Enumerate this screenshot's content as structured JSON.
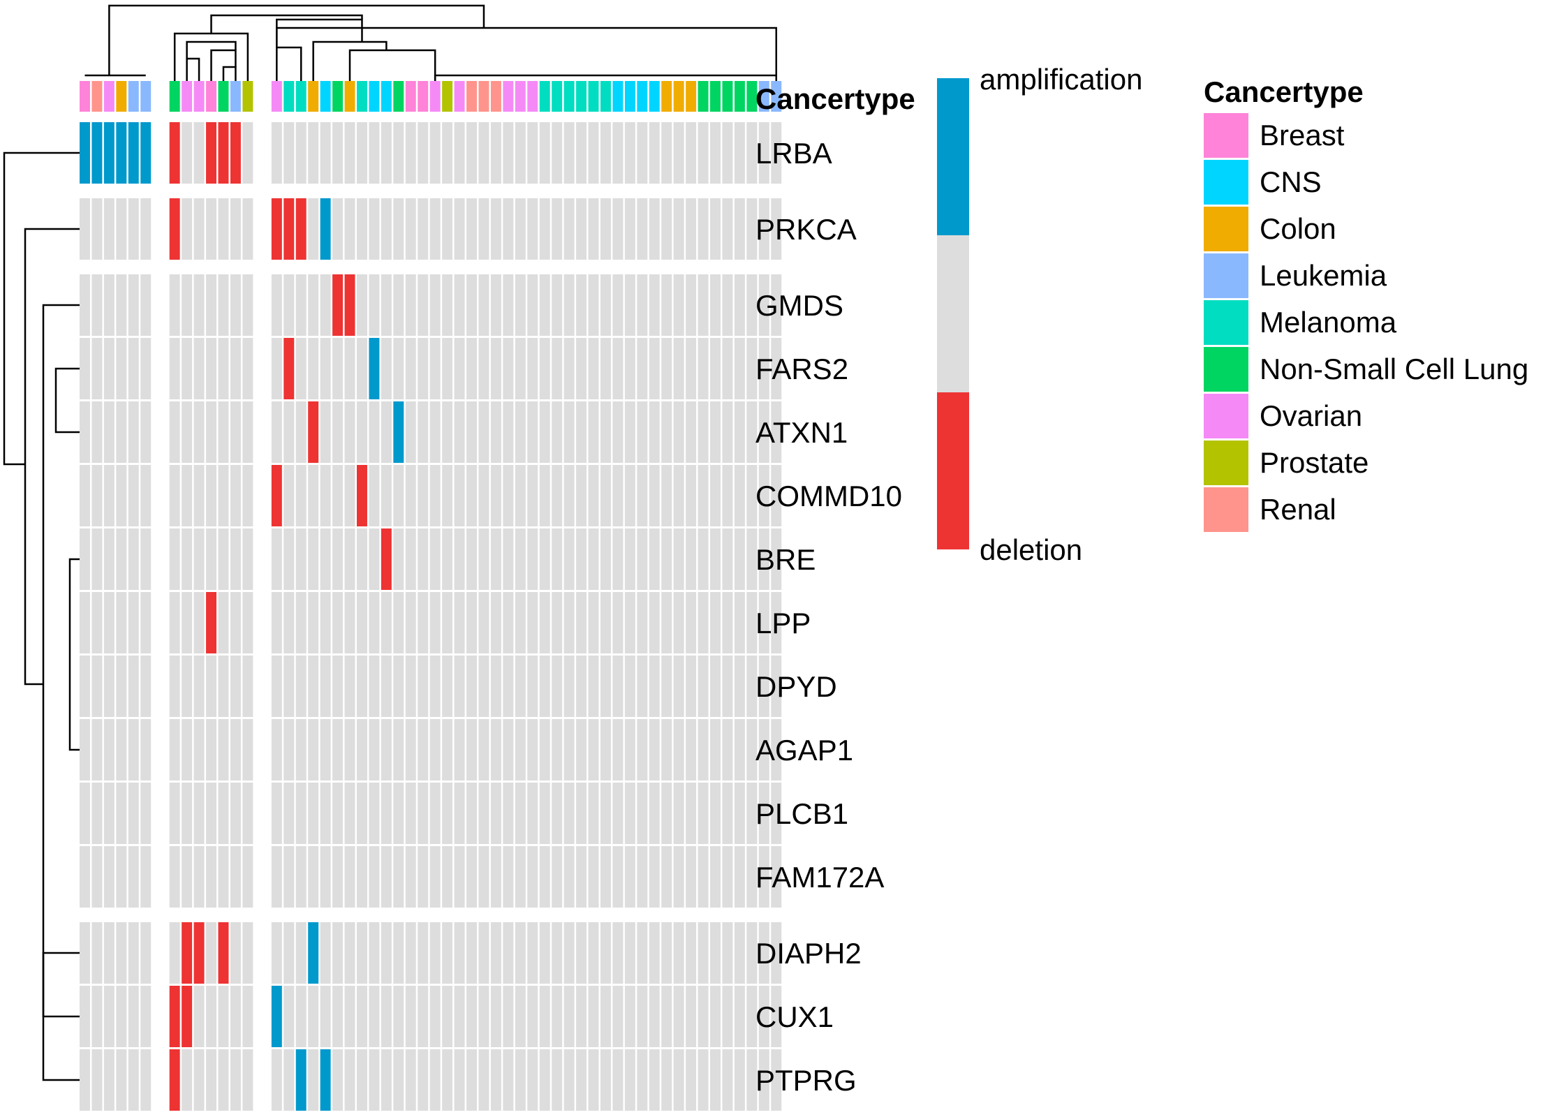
{
  "chart_data": {
    "type": "heatmap",
    "title": "",
    "annotation_title": "Cancertype",
    "cancer_types": [
      {
        "name": "Breast",
        "color": "#FF83D8"
      },
      {
        "name": "CNS",
        "color": "#00D5FF"
      },
      {
        "name": "Colon",
        "color": "#F0AC00"
      },
      {
        "name": "Leukemia",
        "color": "#8AB8FE"
      },
      {
        "name": "Melanoma",
        "color": "#00DDC0"
      },
      {
        "name": "Non-Small Cell Lung",
        "color": "#00D561"
      },
      {
        "name": "Ovarian",
        "color": "#F58AF6"
      },
      {
        "name": "Prostate",
        "color": "#B3C300"
      },
      {
        "name": "Renal",
        "color": "#FF948C"
      }
    ],
    "value_legend": {
      "top_label": "amplification",
      "bottom_label": "deletion",
      "colors": {
        "amplification": "#0099CC",
        "none": "#DDDDDD",
        "deletion": "#EE3333"
      }
    },
    "column_groups": [
      {
        "columns": [
          "Breast",
          "Renal",
          "Ovarian",
          "Colon",
          "Leukemia",
          "Leukemia"
        ]
      },
      {
        "columns": [
          "Non-Small Cell Lung",
          "Ovarian",
          "Ovarian",
          "Breast",
          "Non-Small Cell Lung",
          "Leukemia",
          "Prostate"
        ]
      },
      {
        "columns": [
          "Ovarian",
          "Melanoma",
          "Melanoma",
          "Colon",
          "CNS",
          "Non-Small Cell Lung",
          "Colon",
          "Melanoma",
          "CNS",
          "CNS",
          "Non-Small Cell Lung",
          "Breast",
          "Breast",
          "Ovarian",
          "Prostate",
          "Ovarian",
          "Renal",
          "Renal",
          "Renal",
          "Ovarian",
          "Ovarian",
          "Ovarian",
          "Melanoma",
          "Melanoma",
          "Melanoma",
          "Melanoma",
          "Melanoma",
          "Melanoma",
          "CNS",
          "CNS",
          "CNS",
          "CNS",
          "Colon",
          "Colon",
          "Colon",
          "Non-Small Cell Lung",
          "Non-Small Cell Lung",
          "Non-Small Cell Lung",
          "Non-Small Cell Lung",
          "Non-Small Cell Lung",
          "Leukemia",
          "Leukemia"
        ]
      }
    ],
    "row_groups": [
      {
        "genes": [
          "LRBA"
        ]
      },
      {
        "genes": [
          "PRKCA"
        ]
      },
      {
        "genes": [
          "GMDS",
          "FARS2",
          "ATXN1",
          "COMMD10",
          "BRE",
          "LPP",
          "DPYD",
          "AGAP1",
          "PLCB1",
          "FAM172A"
        ]
      },
      {
        "genes": [
          "DIAPH2",
          "CUX1",
          "PTPRG"
        ]
      }
    ],
    "events": {
      "LRBA": {
        "amplification": [
          0,
          1,
          2,
          3,
          4,
          5
        ],
        "deletion": [
          6,
          9,
          10,
          11
        ]
      },
      "PRKCA": {
        "amplification": [
          17
        ],
        "deletion": [
          6,
          13,
          14,
          15
        ]
      },
      "GMDS": {
        "amplification": [],
        "deletion": [
          18,
          19
        ]
      },
      "FARS2": {
        "amplification": [
          21
        ],
        "deletion": [
          14
        ]
      },
      "ATXN1": {
        "amplification": [
          23
        ],
        "deletion": [
          16
        ]
      },
      "COMMD10": {
        "amplification": [],
        "deletion": [
          13,
          20
        ]
      },
      "BRE": {
        "amplification": [],
        "deletion": [
          22
        ]
      },
      "LPP": {
        "amplification": [],
        "deletion": [
          9
        ]
      },
      "DPYD": {
        "amplification": [],
        "deletion": []
      },
      "AGAP1": {
        "amplification": [],
        "deletion": []
      },
      "PLCB1": {
        "amplification": [],
        "deletion": []
      },
      "FAM172A": {
        "amplification": [],
        "deletion": []
      },
      "DIAPH2": {
        "amplification": [
          16
        ],
        "deletion": [
          7,
          8,
          10
        ]
      },
      "CUX1": {
        "amplification": [
          13
        ],
        "deletion": [
          6,
          7
        ]
      },
      "PTPRG": {
        "amplification": [
          15,
          17
        ],
        "deletion": [
          6
        ]
      }
    }
  }
}
